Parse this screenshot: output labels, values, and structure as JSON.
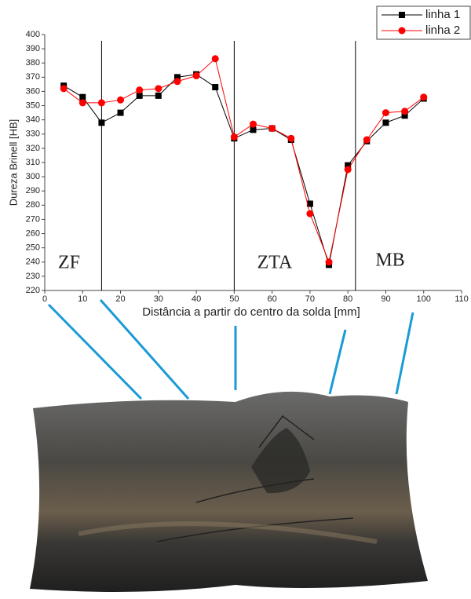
{
  "chart_data": {
    "type": "line",
    "ylabel": "Dureza Brinell [HB]",
    "xlabel": "Distância a partir do centro da solda [mm]",
    "x": [
      5,
      10,
      15,
      20,
      25,
      30,
      35,
      40,
      45,
      50,
      55,
      60,
      65,
      70,
      75,
      80,
      85,
      90,
      95,
      100
    ],
    "series": [
      {
        "name": "linha 1",
        "color": "#000000",
        "marker": "square",
        "values": [
          364,
          356,
          338,
          345,
          357,
          357,
          370,
          372,
          363,
          327,
          333,
          334,
          326,
          281,
          238,
          308,
          325,
          338,
          343,
          355
        ]
      },
      {
        "name": "linha 2",
        "color": "#ff0000",
        "marker": "circle",
        "values": [
          362,
          352,
          352,
          354,
          361,
          362,
          367,
          371,
          383,
          328,
          337,
          334,
          327,
          274,
          240,
          305,
          326,
          345,
          346,
          356
        ]
      }
    ],
    "xlim": [
      0,
      110
    ],
    "xticks": [
      0,
      10,
      20,
      30,
      40,
      50,
      60,
      70,
      80,
      90,
      100,
      110
    ],
    "ylim": [
      220,
      400
    ],
    "yticks": [
      220,
      230,
      240,
      250,
      260,
      270,
      280,
      290,
      300,
      310,
      320,
      330,
      340,
      350,
      360,
      370,
      380,
      390,
      400
    ],
    "zone_boundaries": [
      15,
      50,
      82
    ],
    "annotations": [
      "ZF",
      "ZTA",
      "MB"
    ],
    "legend": "top-right"
  }
}
